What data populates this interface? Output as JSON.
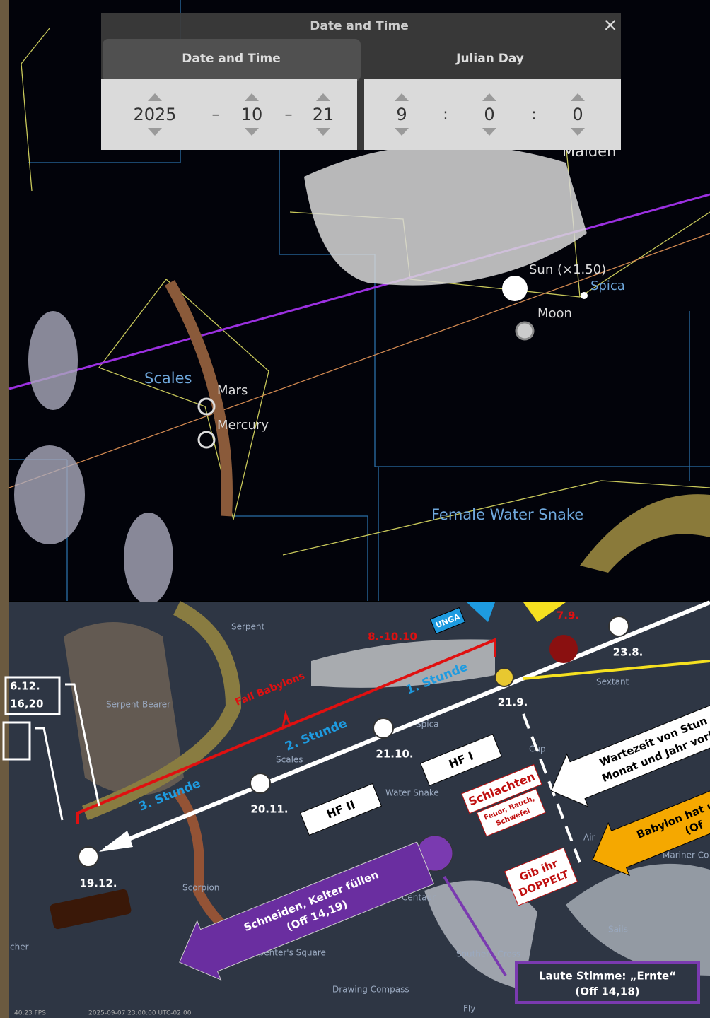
{
  "dialog": {
    "title": "Date and Time",
    "close": "×",
    "tabs": [
      "Date and Time",
      "Julian Day"
    ],
    "date": [
      2025,
      10,
      21
    ],
    "date_separator": "–",
    "time": [
      9,
      0,
      0
    ],
    "time_separator": ":"
  },
  "sky_labels": [
    "Maiden",
    "Sun (×1.50)",
    "Spica",
    "Moon",
    "Scales",
    "Mars",
    "Mercury",
    "Female Water Snake"
  ],
  "timeline_dates": [
    "23.8.",
    "21.9.",
    "21.10.",
    "20.11.",
    "19.12."
  ],
  "hours": [
    "1. Stunde",
    "2. Stunde",
    "3. Stunde"
  ],
  "events": {
    "unga": "UNGA",
    "moon_date": "7.9.",
    "trumpet_date": "8.-10.10",
    "fall": "Fall Babylons",
    "hf1": "HF I",
    "hf2": "HF II",
    "slaughter": "Schlachten",
    "fire": [
      "Feuer, Rauch,",
      "Schwefel"
    ],
    "double": [
      "Gib ihr",
      "DOPPELT"
    ],
    "waiting": [
      "Wartezeit von Stun",
      "Monat und Jahr vorb"
    ],
    "babylon": [
      "Babylon hat u",
      "(Of"
    ],
    "harvest_arrow": [
      "Schneiden, Kelter füllen",
      "(Off 14,19)"
    ],
    "voice": [
      "Laute Stimme: „Ernte“",
      "(Off 14,18)"
    ],
    "left_box": [
      "6.12.",
      "16,20"
    ]
  },
  "map_labels": [
    "Serpent",
    "Serpent Bearer",
    "Sextant",
    "Spica",
    "Scales",
    "Water Snake",
    "Cup",
    "Scorpion",
    "Centaur",
    "Air",
    "Mariner Co",
    "Sails",
    "Southern Cross",
    "Drawing Compass",
    "Carpenter's Square",
    "Fly",
    "cher"
  ],
  "status": [
    "40.23 FPS",
    "2025-09-07 23:00:00 UTC-02:00"
  ]
}
